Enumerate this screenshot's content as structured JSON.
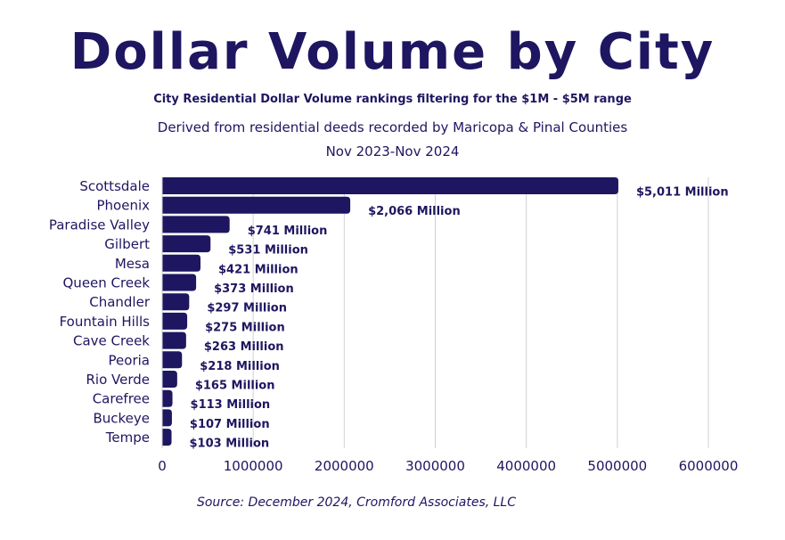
{
  "title": "Dollar Volume by City",
  "subtitle": "City Residential Dollar Volume rankings filtering for the $1M - $5M range",
  "description": "Derived from residential deeds recorded by Maricopa & Pinal Counties",
  "period": "Nov 2023-Nov 2024",
  "source": "Source: December 2024,  Cromford Associates, LLC",
  "colors": {
    "bar": "#1e1660",
    "grid": "#d0d0d8",
    "text": "#1e1660"
  },
  "chart_data": {
    "type": "bar",
    "orientation": "horizontal",
    "categories": [
      "Scottsdale",
      "Phoenix",
      "Paradise Valley",
      "Gilbert",
      "Mesa",
      "Queen Creek",
      "Chandler",
      "Fountain Hills",
      "Cave Creek",
      "Peoria",
      "Rio Verde",
      "Carefree",
      "Buckeye",
      "Tempe"
    ],
    "values": [
      5011000,
      2066000,
      741000,
      531000,
      421000,
      373000,
      297000,
      275000,
      263000,
      218000,
      165000,
      113000,
      107000,
      103000
    ],
    "data_labels": [
      "$5,011 Million",
      "$2,066 Million",
      "$741 Million",
      "$531 Million",
      "$421 Million",
      "$373 Million",
      "$297 Million",
      "$275 Million",
      "$263 Million",
      "$218 Million",
      "$165 Million",
      "$113 Million",
      "$107 Million",
      "$103 Million"
    ],
    "xticks": [
      "0",
      "1000000",
      "2000000",
      "3000000",
      "4000000",
      "5000000",
      "6000000"
    ],
    "xlim": [
      0,
      6000000
    ],
    "grid": true
  }
}
